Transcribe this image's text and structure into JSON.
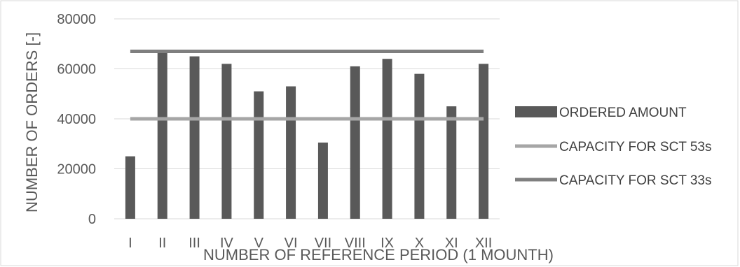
{
  "chart_data": {
    "type": "bar",
    "categories": [
      "I",
      "II",
      "III",
      "IV",
      "V",
      "VI",
      "VII",
      "VIII",
      "IX",
      "X",
      "XI",
      "XII"
    ],
    "series": [
      {
        "name": "ORDERED AMOUNT",
        "kind": "bar",
        "color": "#595959",
        "values": [
          25000,
          67000,
          65000,
          62000,
          51000,
          53000,
          30500,
          61000,
          64000,
          58000,
          45000,
          62000
        ]
      },
      {
        "name": "CAPACITY FOR SCT 53s",
        "kind": "line",
        "color": "#a6a6a6",
        "values": [
          40000,
          40000,
          40000,
          40000,
          40000,
          40000,
          40000,
          40000,
          40000,
          40000,
          40000,
          40000
        ]
      },
      {
        "name": "CAPACITY FOR SCT 33s",
        "kind": "line",
        "color": "#7f7f7f",
        "values": [
          67000,
          67000,
          67000,
          67000,
          67000,
          67000,
          67000,
          67000,
          67000,
          67000,
          67000,
          67000
        ]
      }
    ],
    "xlabel": "NUMBER OF REFERENCE PERIOD (1 MOUNTH)",
    "ylabel": "NUMBER OF ORDERS [-]",
    "ylim": [
      0,
      80000
    ],
    "yticks": [
      "0",
      "20000",
      "40000",
      "60000",
      "80000"
    ],
    "grid": true,
    "legend_position": "right",
    "grid_color": "#d9d9d9"
  }
}
